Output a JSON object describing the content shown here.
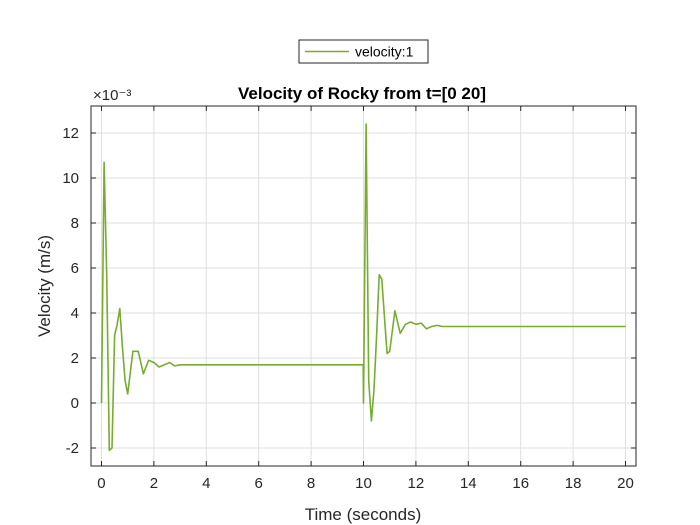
{
  "chart_data": {
    "type": "line",
    "title": "Velocity of Rocky from t=[0 20]",
    "xlabel": "Time (seconds)",
    "ylabel": "Velocity (m/s)",
    "y_exponent_label": "×10⁻³",
    "xlim": [
      -0.4,
      20.4
    ],
    "ylim": [
      -2.8,
      13.2
    ],
    "x_ticks": [
      0,
      2,
      4,
      6,
      8,
      10,
      12,
      14,
      16,
      18,
      20
    ],
    "y_ticks": [
      -2,
      0,
      2,
      4,
      6,
      8,
      10,
      12
    ],
    "grid": true,
    "legend_position": "top-center, outside plot",
    "series": [
      {
        "name": "velocity:1",
        "color": "#77ac30",
        "x": [
          0,
          0.1,
          0.2,
          0.3,
          0.4,
          0.5,
          0.6,
          0.7,
          0.8,
          0.9,
          1.0,
          1.2,
          1.4,
          1.6,
          1.8,
          2.0,
          2.2,
          2.4,
          2.6,
          2.8,
          3.0,
          3.5,
          4.0,
          5.0,
          6.0,
          7.0,
          8.0,
          9.0,
          9.99,
          10.0,
          10.1,
          10.2,
          10.3,
          10.4,
          10.5,
          10.6,
          10.7,
          10.8,
          10.9,
          11.0,
          11.2,
          11.4,
          11.6,
          11.8,
          12.0,
          12.2,
          12.4,
          12.6,
          12.8,
          13.0,
          13.5,
          14.0,
          15.0,
          16.0,
          17.0,
          18.0,
          19.0,
          20.0
        ],
        "values": [
          0,
          10.7,
          5.7,
          -2.1,
          -2.0,
          3.0,
          3.5,
          4.2,
          2.5,
          1.0,
          0.4,
          2.3,
          2.3,
          1.3,
          1.9,
          1.8,
          1.6,
          1.7,
          1.8,
          1.65,
          1.7,
          1.7,
          1.7,
          1.7,
          1.7,
          1.7,
          1.7,
          1.7,
          1.7,
          0,
          12.4,
          1.0,
          -0.8,
          0.6,
          3.0,
          5.7,
          5.5,
          3.8,
          2.2,
          2.3,
          4.1,
          3.1,
          3.5,
          3.6,
          3.5,
          3.55,
          3.3,
          3.4,
          3.45,
          3.4,
          3.4,
          3.4,
          3.4,
          3.4,
          3.4,
          3.4,
          3.4,
          3.4
        ]
      }
    ]
  }
}
